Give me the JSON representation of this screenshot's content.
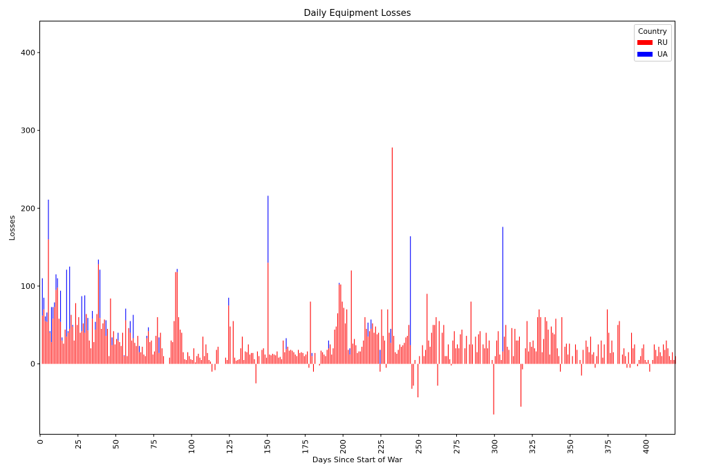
{
  "chart_data": {
    "type": "bar",
    "stacked": true,
    "title": "Daily Equipment Losses",
    "xlabel": "Days Since Start of War",
    "ylabel": "Losses",
    "xlim": [
      0,
      419
    ],
    "ylim": [
      -90,
      440
    ],
    "x_ticks": [
      0,
      25,
      50,
      75,
      100,
      125,
      150,
      175,
      200,
      225,
      250,
      275,
      300,
      325,
      350,
      375,
      400
    ],
    "x_tick_rotation": 90,
    "y_ticks": [
      0,
      100,
      200,
      300,
      400
    ],
    "grid": false,
    "legend": {
      "title": "Country",
      "position": "top-right"
    },
    "series": [
      {
        "name": "RU",
        "color": "#ff0000",
        "values": [
          0,
          62,
          70,
          55,
          54,
          160,
          40,
          28,
          58,
          73,
          95,
          98,
          58,
          54,
          30,
          26,
          44,
          35,
          40,
          45,
          63,
          48,
          30,
          78,
          50,
          60,
          40,
          42,
          52,
          40,
          64,
          43,
          30,
          20,
          58,
          28,
          44,
          64,
          128,
          59,
          45,
          52,
          57,
          36,
          45,
          10,
          84,
          24,
          42,
          25,
          32,
          30,
          28,
          23,
          40,
          10,
          56,
          10,
          46,
          40,
          30,
          33,
          27,
          23,
          36,
          15,
          15,
          22,
          12,
          10,
          33,
          42,
          28,
          30,
          12,
          16,
          36,
          60,
          14,
          40,
          20,
          10,
          0,
          0,
          0,
          8,
          30,
          28,
          55,
          118,
          118,
          60,
          44,
          40,
          15,
          6,
          5,
          15,
          10,
          6,
          5,
          20,
          2,
          10,
          13,
          8,
          5,
          35,
          10,
          25,
          14,
          5,
          3,
          -10,
          0,
          -8,
          18,
          22,
          0,
          0,
          0,
          0,
          8,
          5,
          75,
          48,
          0,
          55,
          8,
          4,
          5,
          6,
          20,
          35,
          5,
          16,
          15,
          25,
          12,
          14,
          14,
          6,
          -25,
          16,
          10,
          0,
          18,
          20,
          12,
          8,
          130,
          12,
          11,
          13,
          12,
          11,
          16,
          8,
          9,
          6,
          30,
          15,
          19,
          22,
          17,
          18,
          17,
          15,
          12,
          10,
          18,
          14,
          15,
          14,
          10,
          12,
          16,
          -5,
          80,
          10,
          -10,
          14,
          0,
          0,
          -2,
          17,
          15,
          12,
          10,
          18,
          20,
          25,
          12,
          20,
          44,
          48,
          65,
          102,
          102,
          80,
          72,
          52,
          70,
          18,
          12,
          120,
          26,
          32,
          24,
          14,
          16,
          16,
          22,
          30,
          60,
          45,
          35,
          42,
          45,
          52,
          40,
          48,
          38,
          40,
          -10,
          70,
          36,
          30,
          -5,
          70,
          40,
          27,
          278,
          36,
          15,
          13,
          18,
          25,
          22,
          24,
          27,
          34,
          36,
          50,
          24,
          -32,
          -28,
          5,
          0,
          -43,
          10,
          0,
          24,
          10,
          18,
          90,
          30,
          22,
          40,
          50,
          50,
          60,
          -28,
          55,
          0,
          40,
          50,
          10,
          10,
          25,
          6,
          -2,
          30,
          42,
          20,
          25,
          20,
          38,
          44,
          0,
          20,
          36,
          0,
          25,
          80,
          25,
          0,
          35,
          15,
          38,
          42,
          0,
          25,
          20,
          40,
          20,
          30,
          0,
          5,
          -65,
          10,
          30,
          42,
          12,
          5,
          16,
          35,
          50,
          22,
          18,
          0,
          46,
          10,
          45,
          30,
          30,
          35,
          -55,
          -7,
          0,
          20,
          55,
          16,
          28,
          22,
          30,
          20,
          16,
          60,
          70,
          60,
          15,
          32,
          60,
          55,
          44,
          12,
          48,
          40,
          38,
          58,
          20,
          10,
          -10,
          60,
          0,
          22,
          26,
          12,
          26,
          0,
          10,
          0,
          25,
          18,
          0,
          5,
          -15,
          18,
          0,
          30,
          22,
          15,
          35,
          12,
          15,
          -5,
          10,
          25,
          0,
          30,
          8,
          25,
          0,
          70,
          40,
          14,
          30,
          15,
          0,
          0,
          50,
          55,
          0,
          12,
          20,
          10,
          -5,
          15,
          -5,
          40,
          20,
          25,
          0,
          -3,
          5,
          10,
          20,
          25,
          5,
          2,
          5,
          -10,
          0,
          5,
          25,
          18,
          10,
          22,
          15,
          10,
          25,
          18,
          30,
          20,
          10,
          5,
          15,
          5,
          10
        ]
      },
      {
        "name": "UA",
        "color": "#0000ff",
        "values": [
          0,
          48,
          15,
          6,
          12,
          51,
          2,
          45,
          15,
          6,
          20,
          12,
          0,
          40,
          4,
          0,
          0,
          86,
          2,
          80,
          0,
          2,
          0,
          0,
          0,
          0,
          0,
          45,
          0,
          48,
          0,
          16,
          0,
          0,
          10,
          0,
          10,
          0,
          6,
          62,
          0,
          0,
          0,
          20,
          0,
          0,
          0,
          10,
          0,
          0,
          0,
          10,
          0,
          0,
          0,
          1,
          15,
          0,
          0,
          15,
          0,
          30,
          0,
          0,
          0,
          8,
          0,
          0,
          0,
          0,
          3,
          5,
          0,
          0,
          0,
          0,
          0,
          0,
          20,
          0,
          0,
          0,
          0,
          0,
          0,
          0,
          0,
          0,
          0,
          0,
          4,
          0,
          0,
          0,
          0,
          0,
          0,
          0,
          0,
          0,
          0,
          0,
          0,
          0,
          0,
          0,
          0,
          0,
          0,
          0,
          0,
          0,
          0,
          0,
          0,
          0,
          0,
          0,
          0,
          0,
          0,
          0,
          0,
          0,
          10,
          0,
          0,
          0,
          0,
          0,
          0,
          0,
          0,
          0,
          0,
          0,
          0,
          0,
          0,
          0,
          0,
          0,
          0,
          0,
          0,
          0,
          0,
          0,
          0,
          0,
          86,
          0,
          0,
          0,
          0,
          0,
          0,
          0,
          0,
          0,
          0,
          0,
          14,
          0,
          0,
          0,
          0,
          0,
          0,
          0,
          0,
          0,
          0,
          0,
          0,
          0,
          0,
          0,
          0,
          4,
          0,
          0,
          0,
          0,
          0,
          0,
          0,
          0,
          0,
          0,
          10,
          0,
          0,
          0,
          0,
          0,
          0,
          2,
          0,
          0,
          0,
          0,
          0,
          0,
          8,
          0,
          0,
          0,
          0,
          0,
          0,
          0,
          0,
          0,
          0,
          0,
          18,
          0,
          12,
          0,
          0,
          0,
          0,
          0,
          18,
          0,
          0,
          0,
          0,
          0,
          0,
          18,
          0,
          0,
          0,
          0,
          0,
          0,
          0,
          0,
          0,
          0,
          0,
          0,
          140,
          0,
          0,
          0,
          0,
          0,
          0,
          0,
          0,
          0,
          0,
          0,
          0,
          0,
          0,
          0,
          0,
          0,
          0,
          0,
          0,
          0,
          0,
          0,
          0,
          0,
          0,
          0,
          0,
          0,
          0,
          0,
          0,
          0,
          0,
          0,
          0,
          0,
          0,
          0,
          0,
          0,
          0,
          0,
          0,
          0,
          0,
          0,
          0,
          0,
          0,
          0,
          0,
          0,
          0,
          0,
          0,
          0,
          0,
          0,
          0,
          160,
          0,
          0,
          0,
          0,
          0,
          0,
          0,
          0,
          0,
          0,
          0,
          0,
          0,
          0,
          0,
          0,
          0,
          0,
          0,
          0,
          0,
          0,
          0,
          0,
          0,
          0,
          0,
          0,
          0,
          0,
          0,
          0,
          0,
          0,
          0,
          0,
          0,
          0,
          0,
          0,
          0,
          0,
          0,
          0,
          0,
          0,
          0,
          0,
          0,
          0,
          0,
          0,
          0,
          0,
          0,
          0,
          0,
          0,
          0,
          0,
          0,
          0,
          0,
          0,
          0,
          0,
          0,
          0,
          0,
          0,
          0,
          0,
          0,
          0,
          0,
          0,
          0,
          0,
          0,
          0,
          0,
          0,
          0,
          0,
          0,
          0,
          0,
          0,
          0,
          0,
          0,
          0,
          0,
          0,
          0,
          0,
          0,
          0,
          0,
          0,
          0,
          0,
          0,
          0,
          0,
          0,
          0,
          0,
          0,
          0,
          0,
          0,
          0,
          0,
          0,
          0,
          0,
          0,
          0,
          0,
          0,
          0,
          0,
          0,
          0,
          0,
          0,
          0,
          0,
          0,
          0,
          0,
          0,
          0,
          0,
          0,
          0,
          0,
          0,
          0,
          0
        ]
      }
    ]
  }
}
